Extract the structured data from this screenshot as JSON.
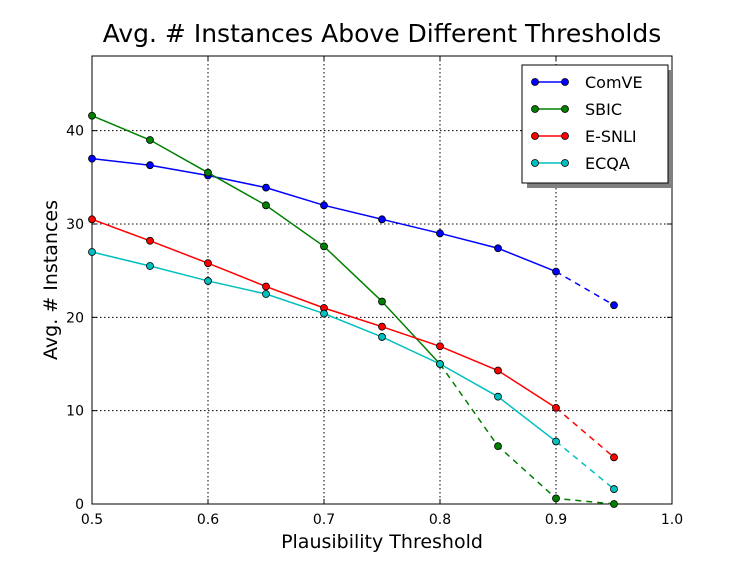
{
  "chart_data": {
    "type": "line",
    "title": "Avg. # Instances Above Different Thresholds",
    "xlabel": "Plausibility Threshold",
    "ylabel": "Avg. # Instances",
    "xlim": [
      0.5,
      1.0
    ],
    "ylim": [
      0,
      48
    ],
    "xticks": [
      0.5,
      0.6,
      0.7,
      0.8,
      0.9,
      1.0
    ],
    "xtick_labels": [
      "0.5",
      "0.6",
      "0.7",
      "0.8",
      "0.9",
      "1.0"
    ],
    "yticks": [
      0,
      10,
      20,
      30,
      40
    ],
    "ytick_labels": [
      "0",
      "10",
      "20",
      "30",
      "40"
    ],
    "grid": true,
    "legend_position": "top-right",
    "series": [
      {
        "name": "ComVE",
        "color": "#0000ff",
        "x": [
          0.5,
          0.55,
          0.6,
          0.65,
          0.7,
          0.75,
          0.8,
          0.85,
          0.9,
          0.95
        ],
        "values": [
          37.0,
          36.3,
          35.2,
          33.9,
          32.0,
          30.5,
          29.0,
          27.4,
          24.9,
          21.3
        ],
        "dashed_after_x": 0.9
      },
      {
        "name": "SBIC",
        "color": "#008000",
        "x": [
          0.5,
          0.55,
          0.6,
          0.65,
          0.7,
          0.75,
          0.8,
          0.85,
          0.9,
          0.95
        ],
        "values": [
          41.6,
          39.0,
          35.5,
          32.0,
          27.6,
          21.7,
          15.0,
          6.2,
          0.6,
          0.0
        ],
        "dashed_after_x": 0.8
      },
      {
        "name": "E-SNLI",
        "color": "#ff0000",
        "x": [
          0.5,
          0.55,
          0.6,
          0.65,
          0.7,
          0.75,
          0.8,
          0.85,
          0.9,
          0.95
        ],
        "values": [
          30.5,
          28.2,
          25.8,
          23.3,
          21.0,
          19.0,
          16.9,
          14.3,
          10.3,
          5.0
        ],
        "dashed_after_x": 0.9
      },
      {
        "name": "ECQA",
        "color": "#00bfbf",
        "x": [
          0.5,
          0.55,
          0.6,
          0.65,
          0.7,
          0.75,
          0.8,
          0.85,
          0.9,
          0.95
        ],
        "values": [
          27.0,
          25.5,
          23.9,
          22.5,
          20.4,
          17.9,
          15.0,
          11.5,
          6.7,
          1.6
        ],
        "dashed_after_x": 0.9
      }
    ]
  }
}
